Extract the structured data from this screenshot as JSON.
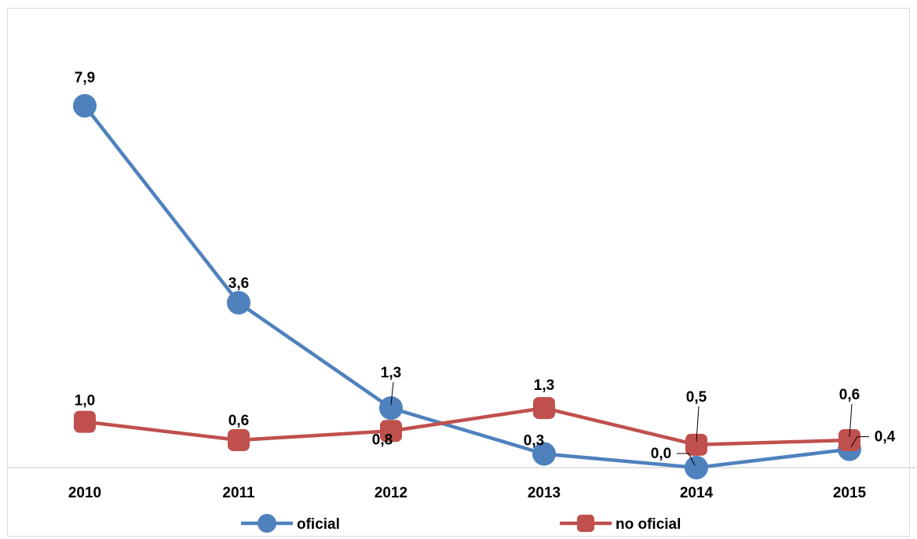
{
  "chart_data": {
    "type": "line",
    "categories": [
      "2010",
      "2011",
      "2012",
      "2013",
      "2014",
      "2015"
    ],
    "ylim": [
      0,
      8.5
    ],
    "grid": false,
    "legend_position": "bottom",
    "series": [
      {
        "name": "oficial",
        "values": [
          7.9,
          3.6,
          1.3,
          0.3,
          0.0,
          0.4
        ],
        "labels": [
          "7,9",
          "3,6",
          "1,3",
          "0,3",
          "0,0",
          "0,4"
        ],
        "color": "#4f81bd",
        "marker": "circle"
      },
      {
        "name": "no oficial",
        "values": [
          1.0,
          0.6,
          0.8,
          1.3,
          0.5,
          0.6
        ],
        "labels": [
          "1,0",
          "0,6",
          "0,8",
          "1,3",
          "0,5",
          "0,6"
        ],
        "color": "#c0504d",
        "marker": "rounded-square"
      }
    ]
  }
}
